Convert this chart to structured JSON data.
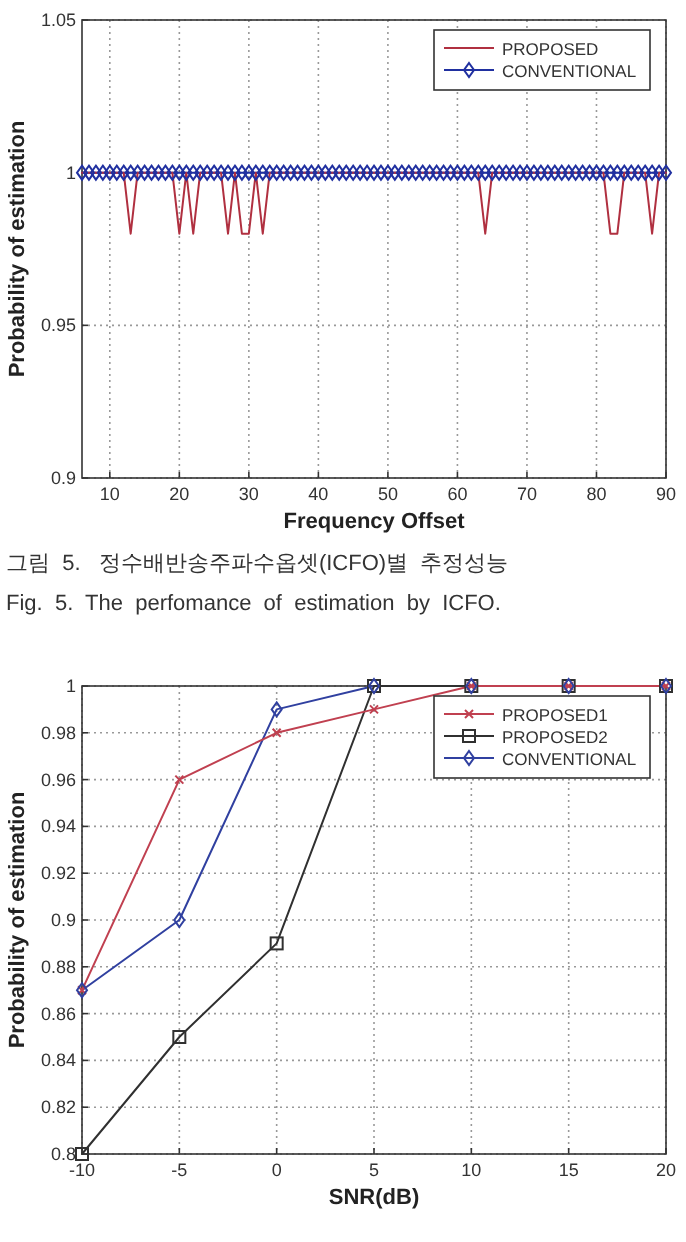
{
  "chart_data": [
    {
      "type": "line",
      "xlabel": "Frequency Offset",
      "ylabel": "Probability of estimation",
      "x": [
        6,
        7,
        8,
        9,
        10,
        11,
        12,
        13,
        14,
        15,
        16,
        17,
        18,
        19,
        20,
        21,
        22,
        23,
        24,
        25,
        26,
        27,
        28,
        29,
        30,
        31,
        32,
        33,
        34,
        35,
        36,
        37,
        38,
        39,
        40,
        41,
        42,
        43,
        44,
        45,
        46,
        47,
        48,
        49,
        50,
        51,
        52,
        53,
        54,
        55,
        56,
        57,
        58,
        59,
        60,
        61,
        62,
        63,
        64,
        65,
        66,
        67,
        68,
        69,
        70,
        71,
        72,
        73,
        74,
        75,
        76,
        77,
        78,
        79,
        80,
        81,
        82,
        83,
        84,
        85,
        86,
        87,
        88,
        89,
        90
      ],
      "series": [
        {
          "name": "PROPOSED",
          "color": "#b03040",
          "marker": "none",
          "values": [
            1,
            1,
            1,
            1,
            1,
            1,
            1,
            0.98,
            1,
            1,
            1,
            1,
            1,
            1,
            0.98,
            1,
            0.98,
            1,
            1,
            1,
            1,
            0.98,
            1,
            0.98,
            0.98,
            1,
            0.98,
            1,
            1,
            1,
            1,
            1,
            1,
            1,
            1,
            1,
            1,
            1,
            1,
            1,
            1,
            1,
            1,
            1,
            1,
            1,
            1,
            1,
            1,
            1,
            1,
            1,
            1,
            1,
            1,
            1,
            1,
            1,
            0.98,
            1,
            1,
            1,
            1,
            1,
            1,
            1,
            1,
            1,
            1,
            1,
            1,
            1,
            1,
            1,
            1,
            1,
            0.98,
            0.98,
            1,
            1,
            1,
            1,
            0.98,
            1,
            1
          ]
        },
        {
          "name": "CONVENTIONAL",
          "color": "#2030a0",
          "marker": "diamond",
          "values": [
            1,
            1,
            1,
            1,
            1,
            1,
            1,
            1,
            1,
            1,
            1,
            1,
            1,
            1,
            1,
            1,
            1,
            1,
            1,
            1,
            1,
            1,
            1,
            1,
            1,
            1,
            1,
            1,
            1,
            1,
            1,
            1,
            1,
            1,
            1,
            1,
            1,
            1,
            1,
            1,
            1,
            1,
            1,
            1,
            1,
            1,
            1,
            1,
            1,
            1,
            1,
            1,
            1,
            1,
            1,
            1,
            1,
            1,
            1,
            1,
            1,
            1,
            1,
            1,
            1,
            1,
            1,
            1,
            1,
            1,
            1,
            1,
            1,
            1,
            1,
            1,
            1,
            1,
            1,
            1,
            1,
            1,
            1,
            1,
            1
          ]
        }
      ],
      "xlim": [
        6,
        90
      ],
      "xticks": [
        10,
        20,
        30,
        40,
        50,
        60,
        70,
        80,
        90
      ],
      "ylim": [
        0.9,
        1.05
      ],
      "yticks": [
        0.9,
        0.95,
        1,
        1.05
      ],
      "grid": true,
      "legend": "top right",
      "annotations": [
        "그림  5.   정수배반송주파수옵셋(ICFO)별  추정성능",
        "Fig.  5.  The  perfomance  of  estimation  by  ICFO."
      ]
    },
    {
      "type": "line",
      "xlabel": "SNR(dB)",
      "ylabel": "Probability of estimation",
      "x": [
        -10,
        -5,
        0,
        5,
        10,
        15,
        20
      ],
      "series": [
        {
          "name": "PROPOSED1",
          "color": "#c04050",
          "marker": "cross",
          "values": [
            0.87,
            0.96,
            0.98,
            0.99,
            1,
            1,
            1
          ]
        },
        {
          "name": "PROPOSED2",
          "color": "#303030",
          "marker": "square",
          "values": [
            0.8,
            0.85,
            0.89,
            1,
            1,
            1,
            1
          ]
        },
        {
          "name": "CONVENTIONAL",
          "color": "#3040a0",
          "marker": "diamond",
          "values": [
            0.87,
            0.9,
            0.99,
            1,
            1,
            1,
            1
          ]
        }
      ],
      "xlim": [
        -10,
        20
      ],
      "xticks": [
        -10,
        -5,
        0,
        5,
        10,
        15,
        20
      ],
      "ylim": [
        0.8,
        1
      ],
      "yticks": [
        0.8,
        0.82,
        0.84,
        0.86,
        0.88,
        0.9,
        0.92,
        0.94,
        0.96,
        0.98,
        1
      ],
      "grid": true,
      "legend": "top right"
    }
  ]
}
